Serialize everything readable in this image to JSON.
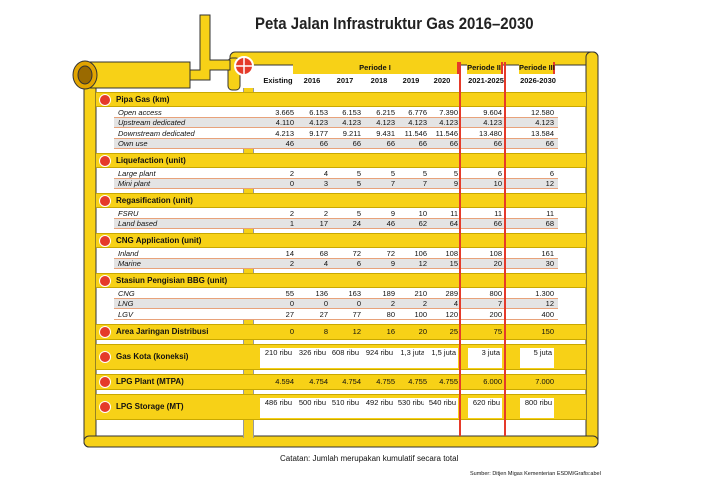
{
  "title": "Peta Jalan Infrastruktur Gas 2016–2030",
  "header": {
    "periods": [
      {
        "label": "Periode I",
        "from": 1,
        "to": 5
      },
      {
        "label": "Periode II",
        "from": 6,
        "to": 6
      },
      {
        "label": "Periode III",
        "from": 7,
        "to": 7
      }
    ],
    "columns": [
      "Existing",
      "2016",
      "2017",
      "2018",
      "2019",
      "2020",
      "2021-2025",
      "2026-2030"
    ]
  },
  "sections": [
    {
      "title": "Pipa Gas (km)",
      "rows": [
        {
          "label": "Open access",
          "values": [
            "3.665",
            "6.153",
            "6.153",
            "6.215",
            "6.776",
            "7.390",
            "9.604",
            "12.580"
          ]
        },
        {
          "label": "Upstream dedicated",
          "values": [
            "4.110",
            "4.123",
            "4.123",
            "4.123",
            "4.123",
            "4.123",
            "4.123",
            "4.123"
          ]
        },
        {
          "label": "Downstream dedicated",
          "values": [
            "4.213",
            "9.177",
            "9.211",
            "9.431",
            "11.546",
            "11.546",
            "13.480",
            "13.584"
          ]
        },
        {
          "label": "Own use",
          "values": [
            "46",
            "66",
            "66",
            "66",
            "66",
            "66",
            "66",
            "66"
          ]
        }
      ]
    },
    {
      "title": "Liquefaction (unit)",
      "rows": [
        {
          "label": "Large plant",
          "values": [
            "2",
            "4",
            "5",
            "5",
            "5",
            "5",
            "6",
            "6"
          ]
        },
        {
          "label": "Mini plant",
          "values": [
            "0",
            "3",
            "5",
            "7",
            "7",
            "9",
            "10",
            "12"
          ]
        }
      ]
    },
    {
      "title": "Regasification (unit)",
      "rows": [
        {
          "label": "FSRU",
          "values": [
            "2",
            "2",
            "5",
            "9",
            "10",
            "11",
            "11",
            "11"
          ]
        },
        {
          "label": "Land based",
          "values": [
            "1",
            "17",
            "24",
            "46",
            "62",
            "64",
            "66",
            "68"
          ]
        }
      ]
    },
    {
      "title": "CNG Application (unit)",
      "rows": [
        {
          "label": "Inland",
          "values": [
            "14",
            "68",
            "72",
            "72",
            "106",
            "108",
            "108",
            "161"
          ]
        },
        {
          "label": "Marine",
          "values": [
            "2",
            "4",
            "6",
            "9",
            "12",
            "15",
            "20",
            "30"
          ]
        }
      ]
    },
    {
      "title": "Stasiun Pengisian BBG (unit)",
      "rows": [
        {
          "label": "CNG",
          "values": [
            "55",
            "136",
            "163",
            "189",
            "210",
            "289",
            "800",
            "1.300"
          ]
        },
        {
          "label": "LNG",
          "values": [
            "0",
            "0",
            "0",
            "2",
            "2",
            "4",
            "7",
            "12"
          ]
        },
        {
          "label": "LGV",
          "values": [
            "27",
            "27",
            "77",
            "80",
            "100",
            "120",
            "200",
            "400"
          ]
        }
      ]
    },
    {
      "title": "Area Jaringan Distribusi",
      "values": [
        "0",
        "8",
        "12",
        "16",
        "20",
        "25",
        "75",
        "150"
      ]
    },
    {
      "title": "Gas Kota (koneksi)",
      "values": [
        "210 ribu",
        "326 ribu",
        "608 ribu",
        "924 ribu",
        "1,3 juta",
        "1,5 juta",
        "3 juta",
        "5 juta"
      ]
    },
    {
      "title": "LPG Plant (MTPA)",
      "values": [
        "4.594",
        "4.754",
        "4.754",
        "4.755",
        "4.755",
        "4.755",
        "6.000",
        "7.000"
      ]
    },
    {
      "title": "LPG Storage (MT)",
      "values": [
        "486 ribu",
        "500 ribu",
        "510 ribu",
        "492 ribu",
        "530 ribu",
        "540 ribu",
        "620 ribu",
        "800 ribu"
      ]
    }
  ],
  "note": "Catatan: Jumlah merupakan kumulatif secara total",
  "source": "Sumber: Ditjen Migas Kementerian ESDM/Grafis:abel"
}
